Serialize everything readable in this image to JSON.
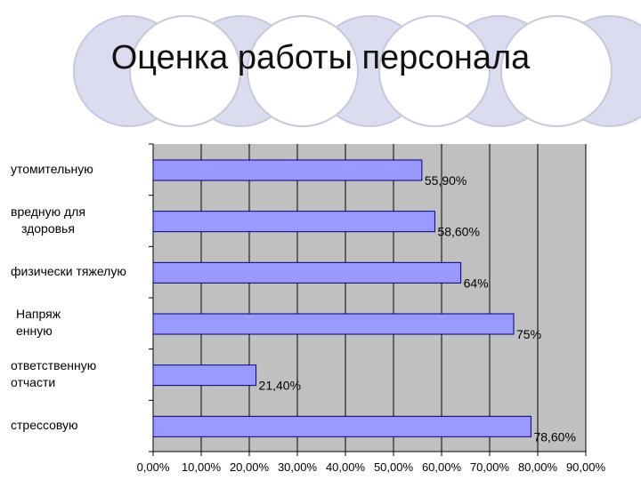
{
  "slide": {
    "title": "Оценка работы персонала"
  },
  "colors": {
    "bar_fill": "#9999ff",
    "bar_stroke": "#000080",
    "plot_bg": "#c0c0c0",
    "circle_fill": "#dcdcf0",
    "circle_stroke": "#c8c8dc"
  },
  "chart_data": {
    "type": "bar",
    "orientation": "horizontal",
    "categories": [
      [
        "утомительную"
      ],
      [
        "вредную для",
        "здоровья"
      ],
      [
        "физически тяжелую"
      ],
      [
        "Напряж",
        "енную"
      ],
      [
        "ответственную",
        "отчасти"
      ],
      [
        "стрессовую"
      ]
    ],
    "values": [
      55.9,
      58.6,
      64,
      75,
      21.4,
      78.6
    ],
    "data_labels": [
      "55,90%",
      "58,60%",
      "64%",
      "75%",
      "21,40%",
      "78,60%"
    ],
    "xlim": [
      0,
      90
    ],
    "x_ticks": [
      0,
      10,
      20,
      30,
      40,
      50,
      60,
      70,
      80,
      90
    ],
    "x_tick_labels": [
      "0,00%",
      "10,00%",
      "20,00%",
      "30,00%",
      "40,00%",
      "50,00%",
      "60,00%",
      "70,00%",
      "80,00%",
      "90,00%"
    ],
    "grid": true,
    "legend": "none"
  }
}
